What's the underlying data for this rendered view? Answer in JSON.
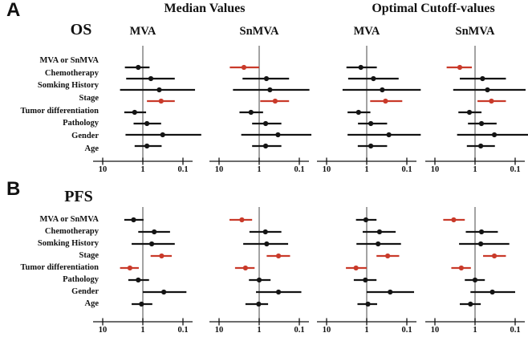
{
  "figure": {
    "panel_a": {
      "letter": "A",
      "endpoint": "OS"
    },
    "panel_b": {
      "letter": "B",
      "endpoint": "PFS"
    },
    "group_headers": [
      "Median Values",
      "Optimal Cutoff-values"
    ],
    "column_headers": [
      "MVA",
      "SnMVA",
      "MVA",
      "SnMVA"
    ],
    "axis_tick_labels": [
      "10",
      "1",
      "0.1"
    ],
    "colors": {
      "significant": "#c93a2a",
      "default": "#141414",
      "reference_line": "#7c7c7c"
    }
  },
  "chart_data": {
    "type": "scatter",
    "subtype": "forest-plot",
    "x_scale": "log10, reversed (10 on left, 0.1 on right)",
    "x_ticks": [
      10,
      1,
      0.1
    ],
    "reference_line_at": 1,
    "point_format": [
      "hazard_ratio",
      "ci_upper",
      "ci_lower",
      "color"
    ],
    "row_labels": [
      "MVA or SnMVA",
      "Chemotherapy",
      "Somking History",
      "Stage",
      "Tumor differentiation",
      "Pathology",
      "Gender",
      "Age"
    ],
    "panels": [
      {
        "label": "A",
        "title": "OS",
        "groups": [
          {
            "group": "Median Values",
            "column": "MVA",
            "points": [
              [
                1.3,
                2.8,
                0.68,
                "black"
              ],
              [
                0.63,
                2.6,
                0.16,
                "black"
              ],
              [
                0.39,
                3.7,
                0.05,
                "black"
              ],
              [
                0.35,
                0.79,
                0.16,
                "red"
              ],
              [
                1.6,
                2.9,
                0.83,
                "black"
              ],
              [
                0.79,
                1.7,
                0.35,
                "black"
              ],
              [
                0.32,
                2.7,
                0.035,
                "black"
              ],
              [
                0.79,
                1.6,
                0.34,
                "black"
              ]
            ]
          },
          {
            "group": "Median Values",
            "column": "SnMVA",
            "points": [
              [
                2.4,
                5.4,
                1.0,
                "red"
              ],
              [
                0.66,
                2.6,
                0.18,
                "black"
              ],
              [
                0.54,
                4.5,
                0.056,
                "black"
              ],
              [
                0.4,
                0.94,
                0.18,
                "red"
              ],
              [
                1.6,
                3.1,
                0.8,
                "black"
              ],
              [
                0.69,
                1.5,
                0.28,
                "black"
              ],
              [
                0.34,
                2.8,
                0.05,
                "black"
              ],
              [
                0.69,
                1.5,
                0.28,
                "black"
              ]
            ]
          },
          {
            "group": "Optimal Cutoff-values",
            "column": "MVA",
            "points": [
              [
                1.4,
                3.2,
                0.56,
                "black"
              ],
              [
                0.68,
                2.9,
                0.16,
                "black"
              ],
              [
                0.41,
                4.0,
                0.045,
                "black"
              ],
              [
                0.34,
                0.82,
                0.13,
                "red"
              ],
              [
                1.6,
                3.0,
                0.81,
                "black"
              ],
              [
                0.79,
                1.65,
                0.31,
                "black"
              ],
              [
                0.28,
                3.0,
                0.045,
                "black"
              ],
              [
                0.79,
                1.67,
                0.31,
                "black"
              ]
            ]
          },
          {
            "group": "Optimal Cutoff-values",
            "column": "SnMVA",
            "points": [
              [
                2.4,
                5.1,
                1.2,
                "red"
              ],
              [
                0.65,
                2.4,
                0.17,
                "black"
              ],
              [
                0.49,
                3.5,
                0.055,
                "black"
              ],
              [
                0.39,
                0.87,
                0.17,
                "red"
              ],
              [
                1.38,
                2.6,
                0.69,
                "black"
              ],
              [
                0.69,
                1.5,
                0.29,
                "black"
              ],
              [
                0.33,
                2.8,
                0.04,
                "black"
              ],
              [
                0.72,
                1.6,
                0.32,
                "black"
              ]
            ]
          }
        ]
      },
      {
        "label": "B",
        "title": "PFS",
        "groups": [
          {
            "group": "Median Values",
            "column": "MVA",
            "points": [
              [
                1.7,
                2.9,
                0.96,
                "black"
              ],
              [
                0.52,
                1.3,
                0.21,
                "black"
              ],
              [
                0.6,
                1.9,
                0.16,
                "black"
              ],
              [
                0.34,
                0.64,
                0.19,
                "red"
              ],
              [
                2.1,
                3.7,
                1.26,
                "red"
              ],
              [
                1.3,
                2.3,
                0.7,
                "black"
              ],
              [
                0.3,
                1.0,
                0.082,
                "black"
              ],
              [
                1.08,
                1.9,
                0.58,
                "black"
              ]
            ]
          },
          {
            "group": "Median Values",
            "column": "SnMVA",
            "points": [
              [
                2.7,
                5.5,
                1.5,
                "red"
              ],
              [
                0.7,
                1.75,
                0.28,
                "black"
              ],
              [
                0.65,
                2.5,
                0.19,
                "black"
              ],
              [
                0.33,
                0.65,
                0.17,
                "red"
              ],
              [
                2.2,
                4.0,
                1.3,
                "red"
              ],
              [
                1.0,
                1.8,
                0.52,
                "black"
              ],
              [
                0.33,
                1.2,
                0.089,
                "black"
              ],
              [
                1.03,
                2.2,
                0.6,
                "black"
              ]
            ]
          },
          {
            "group": "Optimal Cutoff-values",
            "column": "MVA",
            "points": [
              [
                1.05,
                1.85,
                0.57,
                "black"
              ],
              [
                0.48,
                1.26,
                0.19,
                "black"
              ],
              [
                0.52,
                1.8,
                0.14,
                "black"
              ],
              [
                0.3,
                0.57,
                0.155,
                "red"
              ],
              [
                1.85,
                3.3,
                1.0,
                "red"
              ],
              [
                1.08,
                2.1,
                0.57,
                "black"
              ],
              [
                0.26,
                1.0,
                0.066,
                "black"
              ],
              [
                0.93,
                1.7,
                0.55,
                "black"
              ]
            ]
          },
          {
            "group": "Optimal Cutoff-values",
            "column": "SnMVA",
            "points": [
              [
                3.4,
                6.2,
                1.8,
                "red"
              ],
              [
                0.69,
                1.7,
                0.27,
                "black"
              ],
              [
                0.72,
                2.5,
                0.14,
                "black"
              ],
              [
                0.33,
                0.63,
                0.17,
                "red"
              ],
              [
                2.2,
                3.9,
                1.27,
                "red"
              ],
              [
                1.0,
                1.8,
                0.57,
                "black"
              ],
              [
                0.37,
                1.3,
                0.1,
                "black"
              ],
              [
                1.3,
                2.4,
                0.72,
                "black"
              ]
            ]
          }
        ]
      }
    ]
  }
}
